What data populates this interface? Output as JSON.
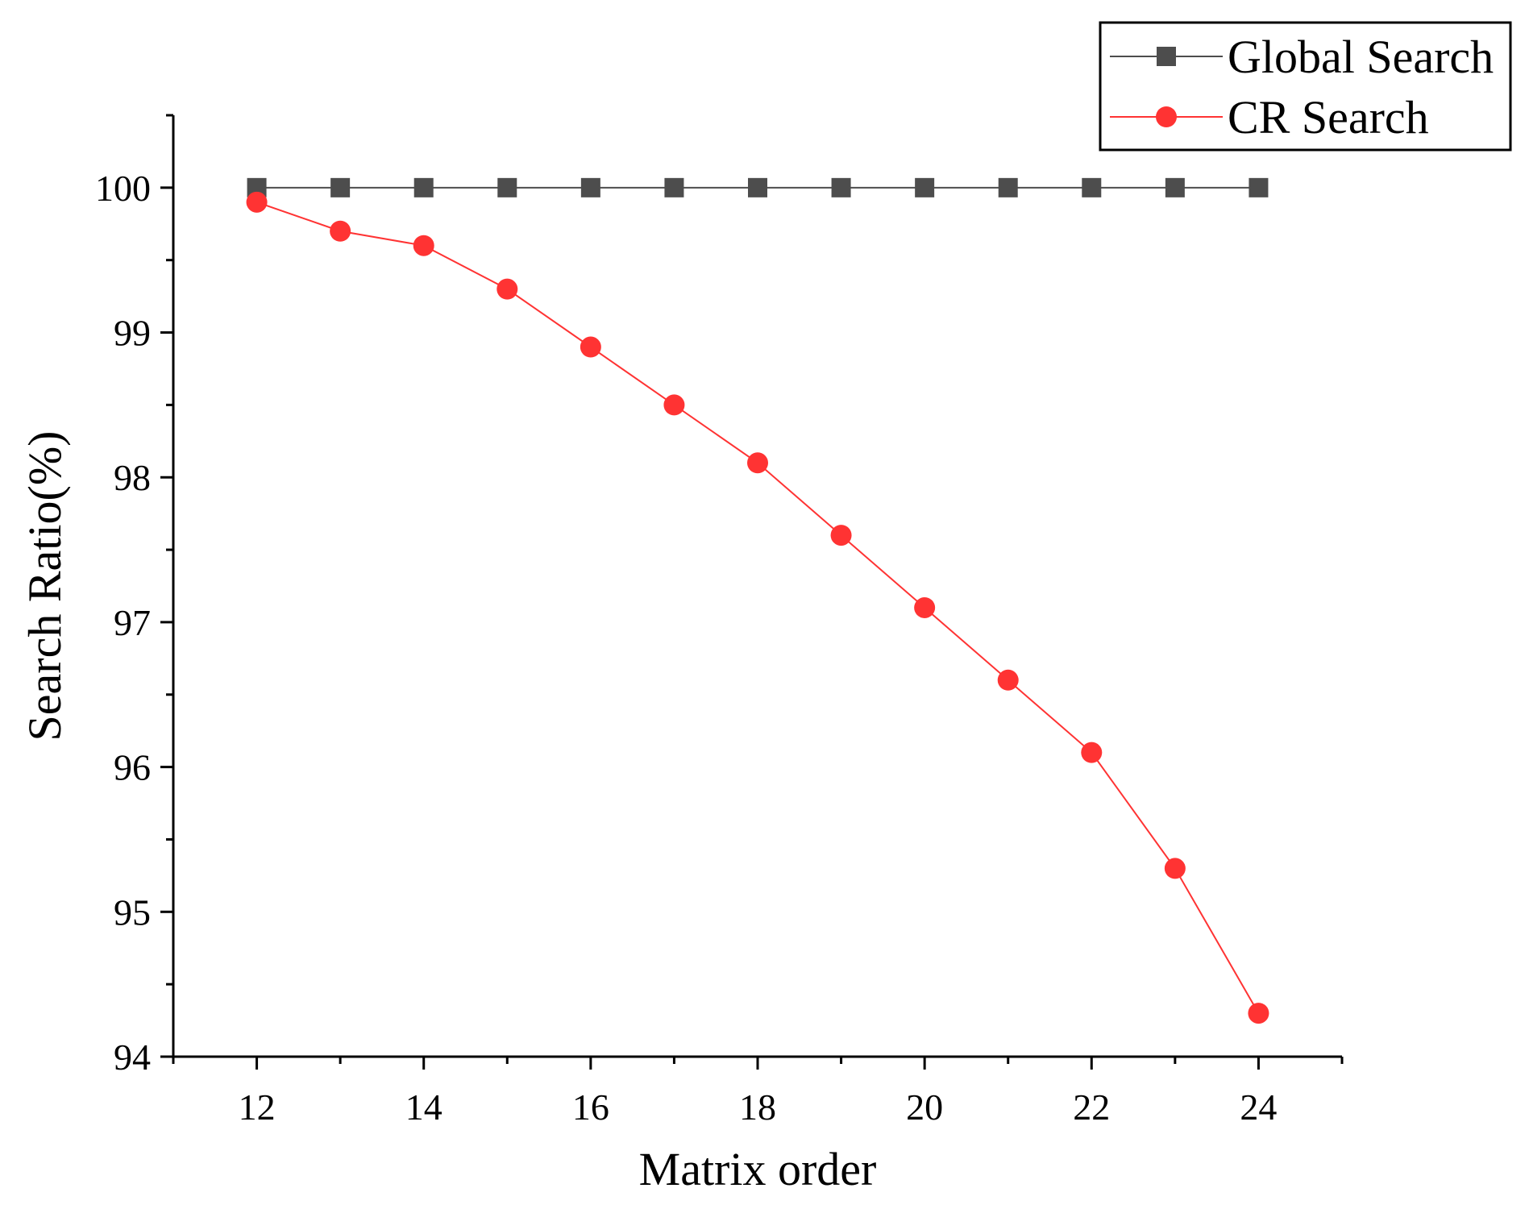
{
  "chart_data": {
    "type": "line",
    "title": "",
    "xlabel": "Matrix order",
    "ylabel": "Search Ratio(%)",
    "xlim": [
      11,
      25
    ],
    "ylim": [
      94,
      100.5
    ],
    "xticks": [
      12,
      14,
      16,
      18,
      20,
      22,
      24
    ],
    "yticks": [
      94,
      95,
      96,
      97,
      98,
      99,
      100
    ],
    "x": [
      12,
      13,
      14,
      15,
      16,
      17,
      18,
      19,
      20,
      21,
      22,
      23,
      24
    ],
    "grid": false,
    "legend_position": "top-right",
    "series": [
      {
        "name": "Global Search",
        "color": "#4d4d4d",
        "marker": "square",
        "values": [
          100,
          100,
          100,
          100,
          100,
          100,
          100,
          100,
          100,
          100,
          100,
          100,
          100
        ]
      },
      {
        "name": "CR Search",
        "color": "#ff3333",
        "marker": "circle",
        "values": [
          99.9,
          99.7,
          99.6,
          99.3,
          98.9,
          98.5,
          98.1,
          97.6,
          97.1,
          96.6,
          96.1,
          95.3,
          94.3
        ]
      }
    ]
  }
}
